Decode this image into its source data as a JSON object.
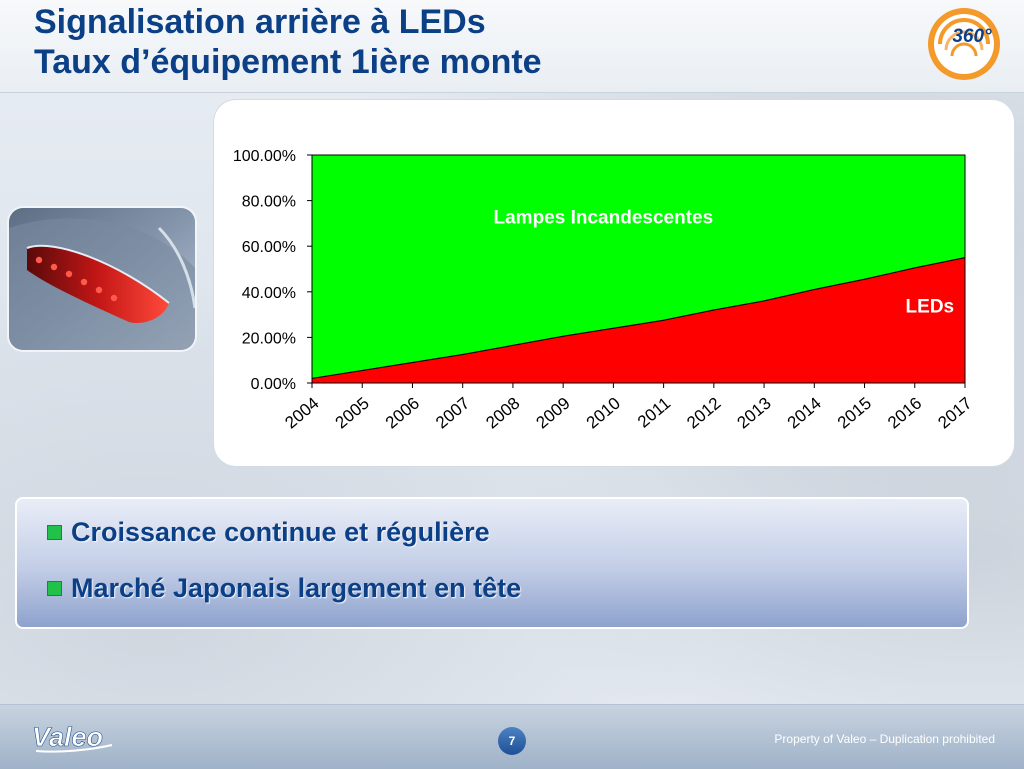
{
  "header": {
    "title_line1": "Signalisation arrière à LEDs",
    "title_line2": "Taux d’équipement 1ière monte"
  },
  "logo": {
    "text": "360°"
  },
  "colors": {
    "title": "#0b3f86",
    "leds_series": "#ff0000",
    "incandescent_series": "#00ff00",
    "bullet_square": "#22c24a"
  },
  "chart_data": {
    "type": "area",
    "stacked": true,
    "title": "",
    "xlabel": "",
    "ylabel": "",
    "x": [
      "2004",
      "2005",
      "2006",
      "2007",
      "2008",
      "2009",
      "2010",
      "2011",
      "2012",
      "2013",
      "2014",
      "2015",
      "2016",
      "2017"
    ],
    "ylim": [
      0,
      100
    ],
    "y_ticks": [
      "0.00%",
      "20.00%",
      "40.00%",
      "60.00%",
      "80.00%",
      "100.00%"
    ],
    "y_tick_values": [
      0,
      20,
      40,
      60,
      80,
      100
    ],
    "series": [
      {
        "name": "LEDs",
        "values": [
          2,
          5.5,
          9,
          12.5,
          16.5,
          20.5,
          24,
          27.5,
          32,
          36,
          41,
          45.5,
          50.5,
          55
        ]
      },
      {
        "name": "Lampes Incandescentes",
        "values": [
          98,
          94.5,
          91,
          87.5,
          83.5,
          79.5,
          76,
          72.5,
          68,
          64,
          59,
          54.5,
          49.5,
          45
        ]
      }
    ],
    "grid": false,
    "legend": "none"
  },
  "bullets": [
    {
      "text": "Croissance continue et régulière"
    },
    {
      "text": "Marché Japonais largement en tête"
    }
  ],
  "footer": {
    "brand": "Valeo",
    "page_number": "7",
    "copyright": "Property of Valeo – Duplication prohibited"
  }
}
